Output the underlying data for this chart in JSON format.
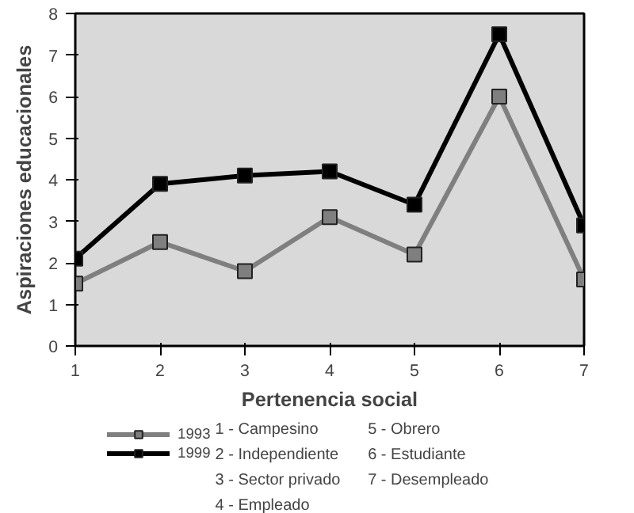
{
  "chart_data": {
    "type": "line",
    "xlabel": "Pertenencia social",
    "ylabel": "Aspiraciones educacionales",
    "x": [
      1,
      2,
      3,
      4,
      5,
      6,
      7
    ],
    "xlim": [
      1,
      7
    ],
    "xticks": [
      1,
      2,
      3,
      4,
      5,
      6,
      7
    ],
    "ylim": [
      0,
      8
    ],
    "yticks": [
      0,
      1,
      2,
      3,
      4,
      5,
      6,
      7,
      8
    ],
    "series": [
      {
        "name": "1993",
        "color": "#7f7f7f",
        "values": [
          1.5,
          2.5,
          1.8,
          3.1,
          2.2,
          6.0,
          1.6
        ]
      },
      {
        "name": "1999",
        "color": "#000000",
        "values": [
          2.1,
          3.9,
          4.1,
          4.2,
          3.4,
          7.5,
          2.9
        ]
      }
    ],
    "marker": "square",
    "line_style": "solid",
    "grid": false,
    "legend": "bottom left",
    "annotations": [
      "1 - Campesino",
      "2 - Independiente",
      "3 - Sector privado",
      "4 - Empleado",
      "5 - Obrero",
      "6 - Estudiante",
      "7 - Desempleado"
    ]
  }
}
